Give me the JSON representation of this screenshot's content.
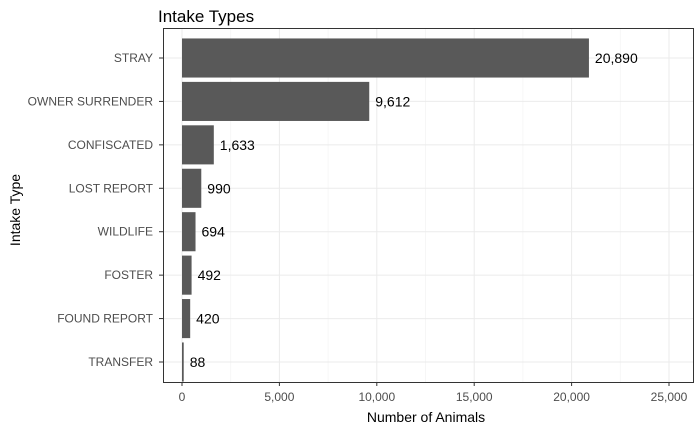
{
  "chart_data": {
    "type": "bar",
    "orientation": "horizontal",
    "title": "Intake Types",
    "xlabel": "Number of Animals",
    "ylabel": "Intake Type",
    "categories": [
      "STRAY",
      "OWNER SURRENDER",
      "CONFISCATED",
      "LOST REPORT",
      "WILDLIFE",
      "FOSTER",
      "FOUND REPORT",
      "TRANSFER"
    ],
    "values": [
      20890,
      9612,
      1633,
      990,
      694,
      492,
      420,
      88
    ],
    "data_labels": [
      "20,890",
      "9,612",
      "1,633",
      "990",
      "694",
      "492",
      "420",
      "88"
    ],
    "xlim": [
      0,
      25000
    ],
    "x_ticks": [
      0,
      5000,
      10000,
      15000,
      20000,
      25000
    ],
    "x_tick_labels": [
      "0",
      "5,000",
      "10,000",
      "15,000",
      "20,000",
      "25,000"
    ],
    "bar_color": "#595959",
    "grid": true,
    "legend": "none"
  }
}
